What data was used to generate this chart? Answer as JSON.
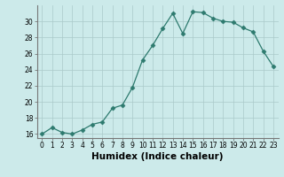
{
  "x": [
    0,
    1,
    2,
    3,
    4,
    5,
    6,
    7,
    8,
    9,
    10,
    11,
    12,
    13,
    14,
    15,
    16,
    17,
    18,
    19,
    20,
    21,
    22,
    23
  ],
  "y": [
    16.0,
    16.8,
    16.2,
    16.0,
    16.5,
    17.2,
    17.5,
    19.2,
    19.6,
    21.8,
    25.2,
    27.0,
    29.1,
    31.0,
    28.5,
    31.2,
    31.1,
    30.4,
    30.0,
    29.9,
    29.2,
    28.7,
    26.3,
    24.4
  ],
  "xlabel": "Humidex (Indice chaleur)",
  "line_color": "#2d7a6e",
  "marker": "D",
  "marker_size": 2.5,
  "bg_color": "#cceaea",
  "grid_color": "#aacaca",
  "ylim": [
    15.5,
    32
  ],
  "yticks": [
    16,
    18,
    20,
    22,
    24,
    26,
    28,
    30
  ],
  "xticks": [
    0,
    1,
    2,
    3,
    4,
    5,
    6,
    7,
    8,
    9,
    10,
    11,
    12,
    13,
    14,
    15,
    16,
    17,
    18,
    19,
    20,
    21,
    22,
    23
  ],
  "tick_fontsize": 5.5,
  "label_fontsize": 7.5
}
